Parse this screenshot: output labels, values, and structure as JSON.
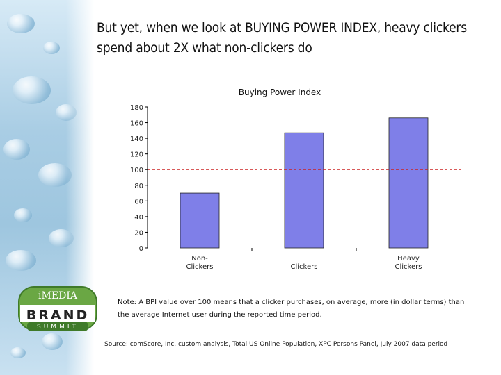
{
  "slide": {
    "title": "But yet, when we look at BUYING POWER INDEX, heavy clickers spend about 2X what non-clickers do",
    "note": "Note: A BPI value over 100 means that a clicker purchases, on average, more (in dollar terms) than the average Internet user during the reported time period.",
    "source": "Source:  comScore, Inc. custom analysis, Total US Online Population, XPC Persons Panel, July 2007 data period"
  },
  "logo": {
    "top": "iMEDIA",
    "middle": "BRAND",
    "bottom": "SUMMIT"
  },
  "chart_data": {
    "type": "bar",
    "title": "Buying Power Index",
    "categories": [
      "Non-\nClickers",
      "Clickers",
      "Heavy\nClickers"
    ],
    "values": [
      70,
      147,
      166
    ],
    "ylim": [
      0,
      180
    ],
    "yticks": [
      0,
      20,
      40,
      60,
      80,
      100,
      120,
      140,
      160,
      180
    ],
    "reference_line": 100,
    "bar_color": "#7f7fe8",
    "reference_color": "#cc2222",
    "grid": false
  }
}
